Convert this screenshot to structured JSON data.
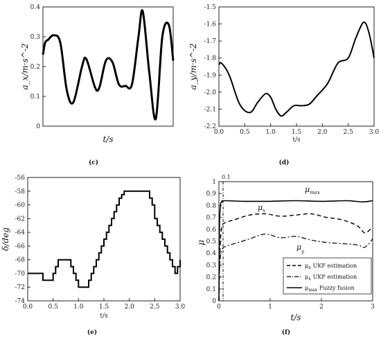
{
  "chart_data": [
    {
      "id": "c",
      "type": "line",
      "caption": "(c)",
      "xlabel": "t/s",
      "ylabel": "a_x/m·s^-2",
      "ylim": [
        0,
        0.4
      ],
      "yticks": [
        "0",
        "0.1",
        "0.2",
        "0.3",
        "0.4"
      ],
      "x_ticks_shown": false,
      "series": [
        {
          "x": [
            0,
            0.05,
            0.12,
            0.25,
            0.4,
            0.55,
            0.7,
            0.9,
            1.0,
            1.2,
            1.3,
            1.45,
            1.6,
            1.75,
            1.9,
            2.05,
            2.2,
            2.3,
            2.45,
            2.6,
            2.75,
            2.9,
            3.0
          ],
          "values": [
            0.24,
            0.28,
            0.29,
            0.305,
            0.28,
            0.12,
            0.08,
            0.2,
            0.225,
            0.13,
            0.13,
            0.22,
            0.215,
            0.14,
            0.135,
            0.14,
            0.3,
            0.385,
            0.18,
            0.025,
            0.3,
            0.34,
            0.22
          ]
        }
      ]
    },
    {
      "id": "d",
      "type": "line",
      "caption": "(d)",
      "xlabel": "t/s",
      "ylabel": "a_y/m·s^-2",
      "xlim": [
        0,
        3.0
      ],
      "ylim": [
        -2.2,
        -1.5
      ],
      "xticks": [
        "0.0",
        "0.5",
        "1.0",
        "1.5",
        "2.0",
        "2.5",
        "3.0"
      ],
      "yticks": [
        "-1.5",
        "-1.6",
        "-1.7",
        "-1.8",
        "-1.9",
        "-2.0",
        "-2.1",
        "-2.2"
      ],
      "series": [
        {
          "x": [
            0,
            0.05,
            0.2,
            0.4,
            0.6,
            0.75,
            0.9,
            1.0,
            1.1,
            1.2,
            1.3,
            1.45,
            1.6,
            1.75,
            1.9,
            2.1,
            2.3,
            2.5,
            2.65,
            2.8,
            2.9,
            3.0
          ],
          "values": [
            -1.84,
            -1.83,
            -1.9,
            -2.07,
            -2.12,
            -2.06,
            -2.01,
            -2.03,
            -2.1,
            -2.14,
            -2.12,
            -2.08,
            -2.08,
            -2.07,
            -2.02,
            -1.95,
            -1.83,
            -1.8,
            -1.68,
            -1.59,
            -1.65,
            -1.8
          ]
        }
      ]
    },
    {
      "id": "e",
      "type": "line",
      "caption": "(e)",
      "xlabel": "t/s",
      "ylabel": "δ/deg",
      "xlim": [
        0,
        3.0
      ],
      "ylim": [
        -74,
        -56
      ],
      "xticks": [
        "0.0",
        "0.5",
        "1.0",
        "1.5",
        "2.0",
        "2.5",
        "3.0"
      ],
      "yticks": [
        "-56",
        "-58",
        "-60",
        "-62",
        "-64",
        "-66",
        "-68",
        "-70",
        "-72",
        "-74"
      ],
      "series": [
        {
          "x": [
            0,
            0.25,
            0.3,
            0.45,
            0.5,
            0.55,
            0.6,
            0.8,
            0.85,
            0.9,
            0.95,
            1.0,
            1.15,
            1.2,
            1.25,
            1.3,
            1.35,
            1.4,
            1.45,
            1.5,
            1.55,
            1.6,
            1.65,
            1.7,
            1.75,
            1.8,
            1.85,
            1.9,
            2.35,
            2.4,
            2.45,
            2.5,
            2.55,
            2.6,
            2.65,
            2.7,
            2.75,
            2.8,
            2.85,
            2.9,
            2.95,
            3.0
          ],
          "values": [
            -70,
            -70,
            -71,
            -71,
            -70,
            -69,
            -68,
            -68,
            -69,
            -70,
            -71,
            -72,
            -72,
            -71,
            -70,
            -69,
            -68,
            -67,
            -66,
            -65,
            -64,
            -63,
            -62,
            -61,
            -60,
            -59,
            -58.5,
            -58,
            -58,
            -59,
            -60,
            -62,
            -63,
            -64,
            -65,
            -66,
            -67,
            -68,
            -69,
            -70,
            -69,
            -68
          ]
        }
      ]
    },
    {
      "id": "f",
      "type": "line",
      "caption": "(f)",
      "xlabel": "t/s",
      "ylabel": "μ",
      "xlim": [
        0,
        3
      ],
      "ylim": [
        0,
        1.0
      ],
      "xticks": [
        "0",
        "1",
        "2",
        "3"
      ],
      "yticks": [
        "0",
        "0.1",
        "0.2",
        "0.3",
        "0.4",
        "0.5",
        "0.6",
        "0.7",
        "0.8",
        "0.9",
        "1"
      ],
      "annotation": "0.1",
      "series_labels": [
        "μmax",
        "μx",
        "μy"
      ],
      "legend": [
        {
          "symbol": "μ",
          "sub": "x",
          "text": "UKF estimation",
          "style": "dashed"
        },
        {
          "symbol": "μ",
          "sub": "x",
          "text": "UKF estimation",
          "style": "dashdot"
        },
        {
          "symbol": "μ",
          "sub": "max",
          "text": "Fuzzy fusion",
          "style": "solid"
        }
      ],
      "series": [
        {
          "style": "solid",
          "x": [
            0,
            0.01,
            0.03,
            0.06,
            0.1,
            0.5,
            1.0,
            1.5,
            2.0,
            2.5,
            2.8,
            3.0
          ],
          "values": [
            0.0,
            0.6,
            0.8,
            0.83,
            0.84,
            0.835,
            0.835,
            0.84,
            0.835,
            0.84,
            0.83,
            0.84
          ]
        },
        {
          "style": "dashed",
          "x": [
            0,
            0.02,
            0.06,
            0.15,
            0.3,
            0.6,
            0.9,
            1.2,
            1.5,
            1.8,
            2.1,
            2.4,
            2.7,
            2.85,
            3.0
          ],
          "values": [
            0.0,
            0.42,
            0.62,
            0.66,
            0.68,
            0.72,
            0.73,
            0.71,
            0.72,
            0.73,
            0.7,
            0.68,
            0.63,
            0.57,
            0.62
          ]
        },
        {
          "style": "dashdot",
          "x": [
            0,
            0.02,
            0.06,
            0.15,
            0.3,
            0.6,
            0.9,
            1.2,
            1.5,
            1.8,
            2.1,
            2.4,
            2.7,
            2.85,
            3.0
          ],
          "values": [
            0.0,
            0.32,
            0.43,
            0.46,
            0.48,
            0.52,
            0.56,
            0.53,
            0.54,
            0.51,
            0.49,
            0.48,
            0.47,
            0.45,
            0.52
          ]
        }
      ]
    }
  ]
}
